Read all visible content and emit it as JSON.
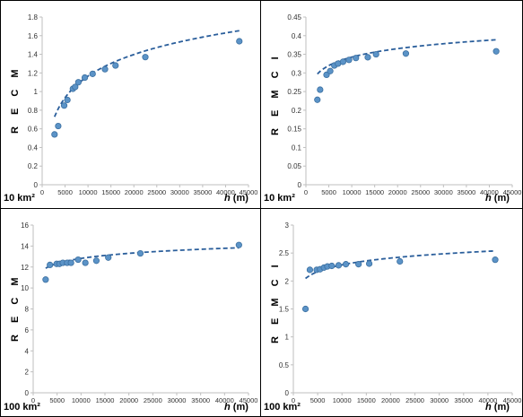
{
  "chart_data": [
    {
      "type": "scatter",
      "ylabel": "R E C M",
      "xlabel": "h (m)",
      "area_label": "10 km²",
      "xlim": [
        0,
        45000
      ],
      "ylim": [
        0,
        1.8
      ],
      "xticks": [
        0,
        5000,
        10000,
        15000,
        20000,
        25000,
        30000,
        35000,
        40000,
        45000
      ],
      "yticks": [
        0,
        0.2,
        0.4,
        0.6,
        0.8,
        1.0,
        1.2,
        1.4,
        1.6,
        1.8
      ],
      "xtick_labels": [
        "0",
        "5000",
        "10000",
        "15000",
        "20000",
        "25000",
        "30000",
        "35000",
        "40000",
        "45000"
      ],
      "ytick_labels": [
        "0",
        "0.2",
        "0.4",
        "0.6",
        "0.8",
        "1",
        "1.2",
        "1.4",
        "1.6",
        "1.8"
      ],
      "points": {
        "x": [
          2700,
          3500,
          4800,
          5500,
          6700,
          7200,
          7900,
          9300,
          11000,
          13700,
          16000,
          22500,
          43000
        ],
        "y": [
          0.54,
          0.63,
          0.85,
          0.91,
          1.03,
          1.05,
          1.1,
          1.15,
          1.19,
          1.24,
          1.28,
          1.37,
          1.54
        ]
      },
      "trend": {
        "kind": "log",
        "a": -1.91,
        "b": 0.334
      },
      "grid": false,
      "colors": {
        "point": "#5b93c7",
        "point_edge": "#3b6fa0",
        "trend": "#2a5e9b"
      }
    },
    {
      "type": "scatter",
      "ylabel": "R E M C I",
      "xlabel": "h (m)",
      "area_label": "10 km²",
      "xlim": [
        0,
        45000
      ],
      "ylim": [
        0,
        0.45
      ],
      "xticks": [
        0,
        5000,
        10000,
        15000,
        20000,
        25000,
        30000,
        35000,
        40000,
        45000
      ],
      "yticks": [
        0,
        0.05,
        0.1,
        0.15,
        0.2,
        0.25,
        0.3,
        0.35,
        0.4,
        0.45
      ],
      "xtick_labels": [
        "0",
        "5000",
        "10000",
        "15000",
        "20000",
        "25000",
        "30000",
        "35000",
        "40000",
        "45000"
      ],
      "ytick_labels": [
        "0",
        "0.05",
        "0.1",
        "0.15",
        "0.2",
        "0.25",
        "0.3",
        "0.35",
        "0.4",
        "0.45"
      ],
      "points": {
        "x": [
          2500,
          3100,
          4500,
          5300,
          6200,
          7000,
          8100,
          9400,
          10900,
          13500,
          15300,
          21800,
          41500
        ],
        "y": [
          0.228,
          0.255,
          0.295,
          0.305,
          0.32,
          0.325,
          0.33,
          0.335,
          0.34,
          0.342,
          0.35,
          0.352,
          0.358
        ]
      },
      "trend": {
        "kind": "log",
        "a": 0.0413,
        "b": 0.0327
      },
      "grid": false,
      "colors": {
        "point": "#5b93c7",
        "point_edge": "#3b6fa0",
        "trend": "#2a5e9b"
      }
    },
    {
      "type": "scatter",
      "ylabel": "R E C M",
      "xlabel": "h (m)",
      "area_label": "100 km²",
      "xlim": [
        0,
        45000
      ],
      "ylim": [
        0,
        16
      ],
      "xticks": [
        0,
        5000,
        10000,
        15000,
        20000,
        25000,
        30000,
        35000,
        40000,
        45000
      ],
      "yticks": [
        0,
        2,
        4,
        6,
        8,
        10,
        12,
        14,
        16
      ],
      "xtick_labels": [
        "0",
        "5000",
        "10000",
        "15000",
        "20000",
        "25000",
        "30000",
        "35000",
        "40000",
        "45000"
      ],
      "ytick_labels": [
        "0",
        "2",
        "4",
        "6",
        "8",
        "10",
        "12",
        "14",
        "16"
      ],
      "points": {
        "x": [
          2600,
          3500,
          4900,
          5500,
          6200,
          7100,
          7900,
          9400,
          10900,
          13200,
          15700,
          22400,
          43000
        ],
        "y": [
          10.8,
          12.2,
          12.3,
          12.3,
          12.4,
          12.4,
          12.4,
          12.7,
          12.4,
          12.6,
          12.9,
          13.3,
          14.1
        ]
      },
      "trend": {
        "kind": "log",
        "a": 6.41,
        "b": 0.696
      },
      "grid": false,
      "colors": {
        "point": "#5b93c7",
        "point_edge": "#3b6fa0",
        "trend": "#2a5e9b"
      }
    },
    {
      "type": "scatter",
      "ylabel": "R E M C I",
      "xlabel": "h (m)",
      "area_label": "100 km²",
      "xlim": [
        0,
        45000
      ],
      "ylim": [
        0,
        3
      ],
      "xticks": [
        0,
        5000,
        10000,
        15000,
        20000,
        25000,
        30000,
        35000,
        40000,
        45000
      ],
      "yticks": [
        0,
        0.5,
        1,
        1.5,
        2,
        2.5,
        3
      ],
      "xtick_labels": [
        "0",
        "5000",
        "10000",
        "15000",
        "20000",
        "25000",
        "30000",
        "35000",
        "40000",
        "45000"
      ],
      "ytick_labels": [
        "0",
        "0.5",
        "1",
        "1.5",
        "2",
        "2.5",
        "3"
      ],
      "points": {
        "x": [
          2500,
          3400,
          4800,
          5500,
          6300,
          7000,
          7900,
          9300,
          10800,
          13400,
          15600,
          21900,
          41500
        ],
        "y": [
          1.5,
          2.2,
          2.2,
          2.21,
          2.24,
          2.26,
          2.27,
          2.28,
          2.3,
          2.3,
          2.31,
          2.35,
          2.38
        ]
      },
      "trend": {
        "kind": "log",
        "a": 0.672,
        "b": 0.1755
      },
      "grid": false,
      "colors": {
        "point": "#5b93c7",
        "point_edge": "#3b6fa0",
        "trend": "#2a5e9b"
      }
    }
  ]
}
